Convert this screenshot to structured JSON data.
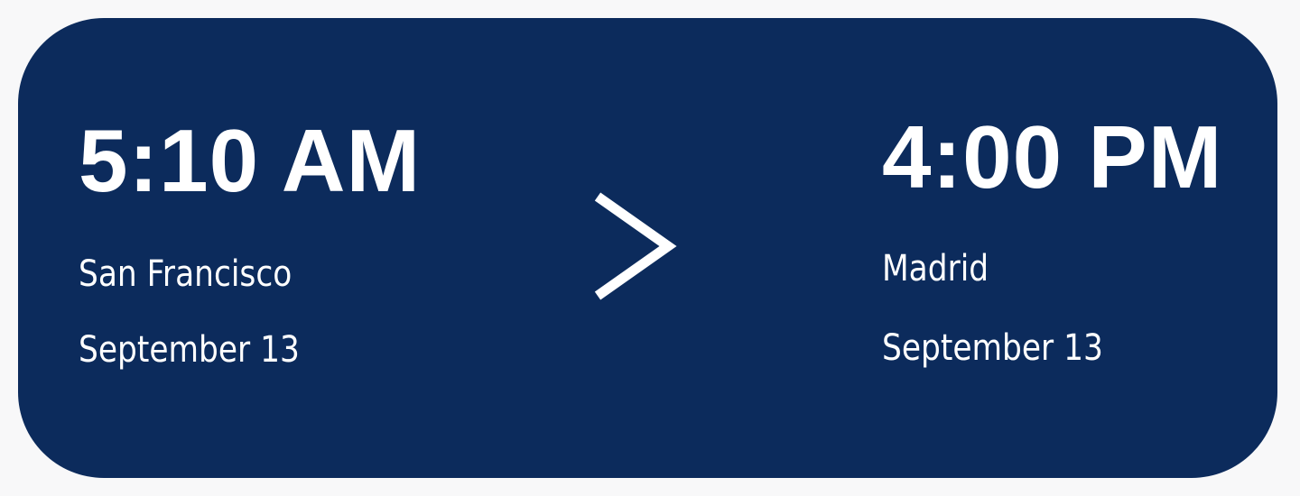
{
  "colors": {
    "card_background": "#0c2b5c",
    "page_background": "#f8f8f9",
    "text": "#ffffff"
  },
  "departure": {
    "time": "5:10 AM",
    "city": "San Francisco",
    "date": "September 13"
  },
  "arrival": {
    "time": "4:00 PM",
    "city": "Madrid",
    "date": "September 13"
  },
  "icons": {
    "separator": "chevron-right-icon"
  }
}
